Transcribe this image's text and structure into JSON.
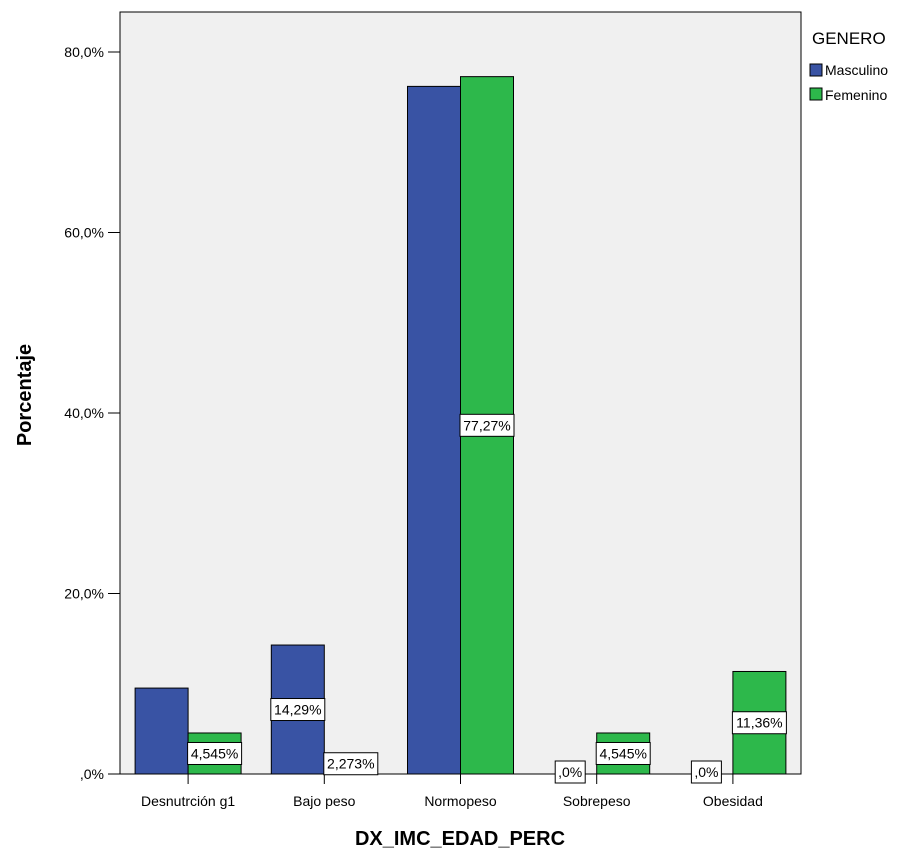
{
  "chart_data": {
    "type": "bar",
    "categories": [
      "Desnutrción g1",
      "Bajo peso",
      "Normopeso",
      "Sobrepeso",
      "Obesidad"
    ],
    "series": [
      {
        "name": "Masculino",
        "values": [
          9.52,
          14.29,
          76.19,
          0.0,
          0.0
        ],
        "color": "#3953a4",
        "labels": [
          "",
          "14,29%",
          "",
          ",0%",
          ",0%"
        ]
      },
      {
        "name": "Femenino",
        "values": [
          4.545,
          2.273,
          77.27,
          4.545,
          11.36
        ],
        "color": "#2db84b",
        "labels": [
          "4,545%",
          "2,273%",
          "77,27%",
          "4,545%",
          "11,36%"
        ]
      }
    ],
    "xlabel": "DX_IMC_EDAD_PERC",
    "ylabel": "Porcentaje",
    "ylim": [
      0,
      80
    ],
    "yticks": [
      0,
      20,
      40,
      60,
      80
    ],
    "ytick_labels": [
      ",0%",
      "20,0%",
      "40,0%",
      "60,0%",
      "80,0%"
    ],
    "legend": {
      "title": "GENERO",
      "position": "top-right"
    },
    "grid": false,
    "plot_background": "#f0f0f0"
  }
}
